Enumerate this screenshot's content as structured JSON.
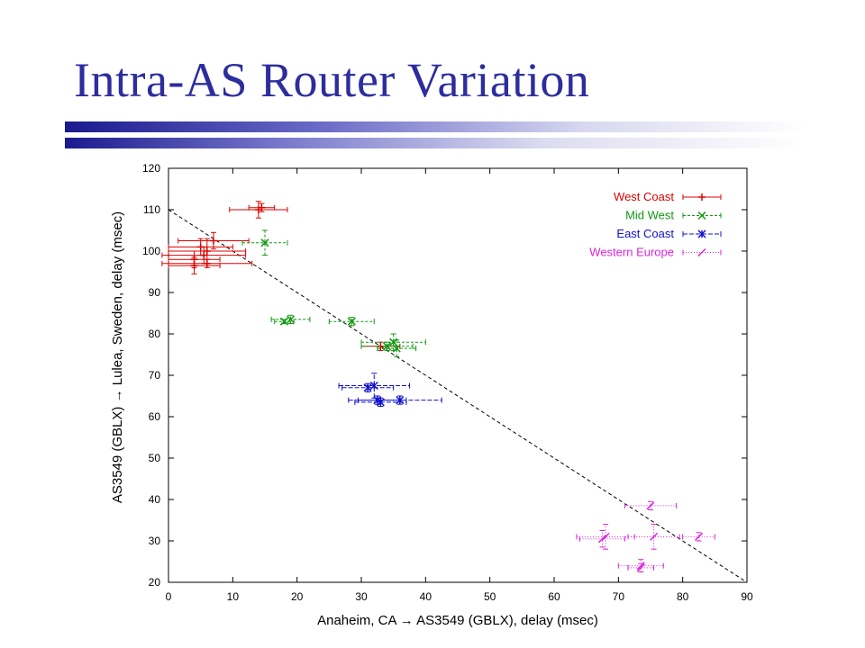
{
  "slide": {
    "title": "Intra-AS Router Variation",
    "accent_color": "#2d2d9e",
    "bar_color_dark": "#1a1a8e"
  },
  "chart_data": {
    "type": "scatter",
    "xlabel": "Anaheim, CA → AS3549 (GBLX), delay (msec)",
    "ylabel": "AS3549 (GBLX) → Lulea, Sweden, delay (msec)",
    "xlim": [
      0,
      90
    ],
    "ylim": [
      20,
      120
    ],
    "xticks": [
      0,
      10,
      20,
      30,
      40,
      50,
      60,
      70,
      80,
      90
    ],
    "yticks": [
      20,
      30,
      40,
      50,
      60,
      70,
      80,
      90,
      100,
      110,
      120
    ],
    "grid": false,
    "legend_position": "top-right",
    "reference_line": {
      "x": [
        0,
        90
      ],
      "y": [
        110,
        20
      ],
      "style": "dashed",
      "color": "#000000"
    },
    "series": [
      {
        "name": "West Coast",
        "color": "#dd0000",
        "marker": "+",
        "points": [
          {
            "x": 14,
            "y": 110,
            "xerr": 4.5,
            "yerr": 2
          },
          {
            "x": 14.5,
            "y": 110.5,
            "xerr": 2,
            "yerr": 1
          },
          {
            "x": 7,
            "y": 102.5,
            "xerr": 5.5,
            "yerr": 2
          },
          {
            "x": 5,
            "y": 101,
            "xerr": 5,
            "yerr": 2
          },
          {
            "x": 6,
            "y": 100,
            "xerr": 6,
            "yerr": 3
          },
          {
            "x": 5.5,
            "y": 99,
            "xerr": 6.5,
            "yerr": 2
          },
          {
            "x": 4,
            "y": 98,
            "xerr": 4,
            "yerr": 2
          },
          {
            "x": 6,
            "y": 97,
            "xerr": 7,
            "yerr": 1
          },
          {
            "x": 4,
            "y": 96.5,
            "xerr": 4,
            "yerr": 2
          },
          {
            "x": 33,
            "y": 77,
            "xerr": 3,
            "yerr": 1
          }
        ]
      },
      {
        "name": "Mid West",
        "color": "#119911",
        "marker": "x",
        "points": [
          {
            "x": 15,
            "y": 102,
            "xerr": 3.5,
            "yerr": 3
          },
          {
            "x": 19,
            "y": 83.5,
            "xerr": 3,
            "yerr": 1
          },
          {
            "x": 18,
            "y": 83,
            "xerr": 1.5,
            "yerr": 0.5
          },
          {
            "x": 28.5,
            "y": 83,
            "xerr": 3.5,
            "yerr": 1
          },
          {
            "x": 35,
            "y": 78,
            "xerr": 5,
            "yerr": 2
          },
          {
            "x": 34,
            "y": 77,
            "xerr": 4,
            "yerr": 1
          },
          {
            "x": 35.5,
            "y": 76.5,
            "xerr": 3,
            "yerr": 2
          }
        ]
      },
      {
        "name": "East Coast",
        "color": "#1111cc",
        "marker": "*",
        "points": [
          {
            "x": 32,
            "y": 67.5,
            "xerr": 5.5,
            "yerr": 3
          },
          {
            "x": 31,
            "y": 67,
            "xerr": 4,
            "yerr": 1
          },
          {
            "x": 32.5,
            "y": 64,
            "xerr": 4.5,
            "yerr": 1
          },
          {
            "x": 36,
            "y": 64,
            "xerr": 6.5,
            "yerr": 1
          },
          {
            "x": 33,
            "y": 63.5,
            "xerr": 4,
            "yerr": 1
          }
        ]
      },
      {
        "name": "Western Europe",
        "color": "#dd22dd",
        "marker": "/",
        "points": [
          {
            "x": 75,
            "y": 38.5,
            "xerr": 4,
            "yerr": 1
          },
          {
            "x": 68,
            "y": 31,
            "xerr": 4.5,
            "yerr": 3
          },
          {
            "x": 67.5,
            "y": 30.5,
            "xerr": 3.5,
            "yerr": 2
          },
          {
            "x": 75.5,
            "y": 31,
            "xerr": 4,
            "yerr": 3
          },
          {
            "x": 82.5,
            "y": 31,
            "xerr": 2.5,
            "yerr": 1
          },
          {
            "x": 73.5,
            "y": 24,
            "xerr": 3.5,
            "yerr": 1.5
          },
          {
            "x": 73.5,
            "y": 23.5,
            "xerr": 2,
            "yerr": 1
          }
        ]
      }
    ]
  }
}
